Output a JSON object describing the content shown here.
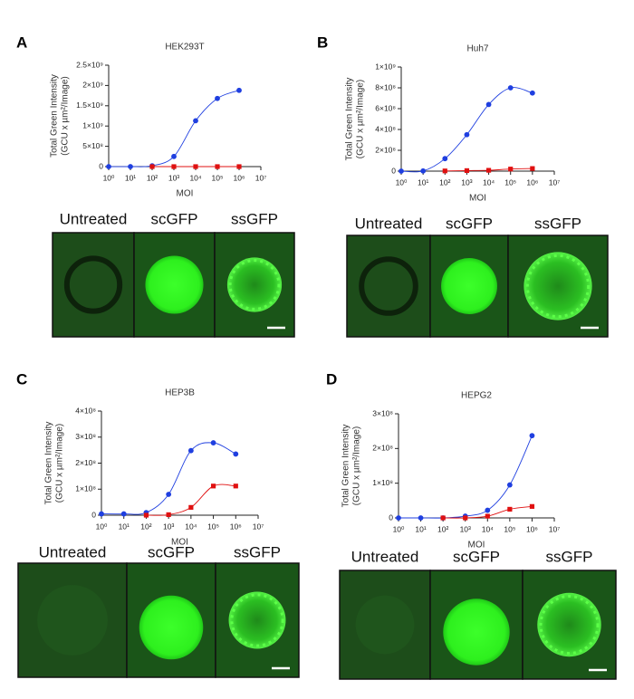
{
  "chart_data": [
    {
      "type": "line",
      "panel": "A",
      "title": "HEK293T",
      "ylabel": [
        "Total Green Intensity",
        "(GCU x µm²/Image)"
      ],
      "xlabel": "MOI",
      "xscale": "log",
      "xlim": [
        1,
        10000000
      ],
      "xticks": [
        {
          "value": 1,
          "label": "10⁰"
        },
        {
          "value": 10,
          "label": "10¹"
        },
        {
          "value": 100,
          "label": "10²"
        },
        {
          "value": 1000,
          "label": "10³"
        },
        {
          "value": 10000,
          "label": "10⁴"
        },
        {
          "value": 100000,
          "label": "10⁵"
        },
        {
          "value": 1000000,
          "label": "10⁶"
        },
        {
          "value": 10000000,
          "label": "10⁷"
        }
      ],
      "ylim": [
        0,
        2500000000
      ],
      "yticks": [
        0,
        {
          "value": 500000000,
          "label": "5×10⁸"
        },
        {
          "value": 1000000000,
          "label": "1×10⁹"
        },
        {
          "value": 1500000000,
          "label": "1.5×10⁹"
        },
        {
          "value": 2000000000,
          "label": "2×10⁹"
        },
        {
          "value": 2500000000,
          "label": "2.5×10⁹"
        }
      ],
      "x": [
        1,
        10,
        100,
        1000,
        10000,
        100000,
        1000000
      ],
      "series": [
        {
          "color": "#1f3fe0",
          "marker": "circle",
          "values": [
            0,
            0,
            20000000,
            250000000,
            1130000000,
            1680000000,
            1880000000
          ]
        },
        {
          "color": "#e01010",
          "marker": "square",
          "values": [
            null,
            null,
            0,
            0,
            0,
            0,
            0
          ]
        }
      ],
      "image_labels": [
        "Untreated",
        "scGFP",
        "ssGFP"
      ]
    },
    {
      "type": "line",
      "panel": "B",
      "title": "Huh7",
      "ylabel": [
        "Total Green Intensity",
        "(GCU x µm²/Image)"
      ],
      "xlabel": "MOI",
      "xscale": "log",
      "xlim": [
        1,
        10000000
      ],
      "xticks": [
        {
          "value": 1,
          "label": "10⁰"
        },
        {
          "value": 10,
          "label": "10¹"
        },
        {
          "value": 100,
          "label": "10²"
        },
        {
          "value": 1000,
          "label": "10³"
        },
        {
          "value": 10000,
          "label": "10⁴"
        },
        {
          "value": 100000,
          "label": "10⁵"
        },
        {
          "value": 1000000,
          "label": "10⁶"
        },
        {
          "value": 10000000,
          "label": "10⁷"
        }
      ],
      "ylim": [
        0,
        1000000000
      ],
      "yticks": [
        0,
        {
          "value": 200000000,
          "label": "2×10⁸"
        },
        {
          "value": 400000000,
          "label": "4×10⁸"
        },
        {
          "value": 600000000,
          "label": "6×10⁸"
        },
        {
          "value": 800000000,
          "label": "8×10⁸"
        },
        {
          "value": 1000000000,
          "label": "1×10⁹"
        }
      ],
      "x": [
        1,
        10,
        100,
        1000,
        10000,
        100000,
        1000000
      ],
      "series": [
        {
          "color": "#1f3fe0",
          "marker": "circle",
          "values": [
            0,
            2000000,
            120000000,
            350000000,
            640000000,
            800000000,
            750000000
          ]
        },
        {
          "color": "#e01010",
          "marker": "square",
          "values": [
            null,
            null,
            2000000,
            5000000,
            8000000,
            20000000,
            25000000
          ]
        }
      ],
      "image_labels": [
        "Untreated",
        "scGFP",
        "ssGFP"
      ]
    },
    {
      "type": "line",
      "panel": "C",
      "title": "HEP3B",
      "ylabel": [
        "Total Green Intensity",
        "(GCU x µm²/Image)"
      ],
      "xlabel": "MOI",
      "xscale": "log",
      "xlim": [
        1,
        10000000
      ],
      "xticks": [
        {
          "value": 1,
          "label": "10⁰"
        },
        {
          "value": 10,
          "label": "10¹"
        },
        {
          "value": 100,
          "label": "10²"
        },
        {
          "value": 1000,
          "label": "10³"
        },
        {
          "value": 10000,
          "label": "10⁴"
        },
        {
          "value": 100000,
          "label": "10⁵"
        },
        {
          "value": 1000000,
          "label": "10⁶"
        },
        {
          "value": 10000000,
          "label": "10⁷"
        }
      ],
      "ylim": [
        0,
        400000000
      ],
      "yticks": [
        0,
        {
          "value": 100000000,
          "label": "1×10⁸"
        },
        {
          "value": 200000000,
          "label": "2×10⁸"
        },
        {
          "value": 300000000,
          "label": "3×10⁸"
        },
        {
          "value": 400000000,
          "label": "4×10⁸"
        }
      ],
      "x": [
        1,
        10,
        100,
        1000,
        10000,
        100000,
        1000000
      ],
      "series": [
        {
          "color": "#1f3fe0",
          "marker": "circle",
          "values": [
            5000000,
            5000000,
            10000000,
            80000000,
            248000000,
            278000000,
            235000000
          ]
        },
        {
          "color": "#e01010",
          "marker": "square",
          "values": [
            null,
            null,
            0,
            2000000,
            30000000,
            112000000,
            112000000
          ]
        }
      ],
      "image_labels": [
        "Untreated",
        "scGFP",
        "ssGFP"
      ]
    },
    {
      "type": "line",
      "panel": "D",
      "title": "HEPG2",
      "ylabel": [
        "Total Green Intensity",
        "(GCU x µm²/Image)"
      ],
      "xlabel": "MOI",
      "xscale": "log",
      "xlim": [
        1,
        10000000
      ],
      "xticks": [
        {
          "value": 1,
          "label": "10⁰"
        },
        {
          "value": 10,
          "label": "10¹"
        },
        {
          "value": 100,
          "label": "10²"
        },
        {
          "value": 1000,
          "label": "10³"
        },
        {
          "value": 10000,
          "label": "10⁴"
        },
        {
          "value": 100000,
          "label": "10⁵"
        },
        {
          "value": 1000000,
          "label": "10⁶"
        },
        {
          "value": 10000000,
          "label": "10⁷"
        }
      ],
      "ylim": [
        0,
        300000000
      ],
      "yticks": [
        0,
        {
          "value": 100000000,
          "label": "1×10⁸"
        },
        {
          "value": 200000000,
          "label": "2×10⁸"
        },
        {
          "value": 300000000,
          "label": "3×10⁸"
        }
      ],
      "x": [
        1,
        10,
        100,
        1000,
        10000,
        100000,
        1000000
      ],
      "series": [
        {
          "color": "#1f3fe0",
          "marker": "circle",
          "values": [
            0,
            0,
            0,
            5000000,
            22000000,
            95000000,
            237000000
          ]
        },
        {
          "color": "#e01010",
          "marker": "square",
          "values": [
            null,
            null,
            0,
            0,
            5000000,
            25000000,
            33000000
          ]
        }
      ],
      "image_labels": [
        "Untreated",
        "scGFP",
        "ssGFP"
      ]
    }
  ]
}
